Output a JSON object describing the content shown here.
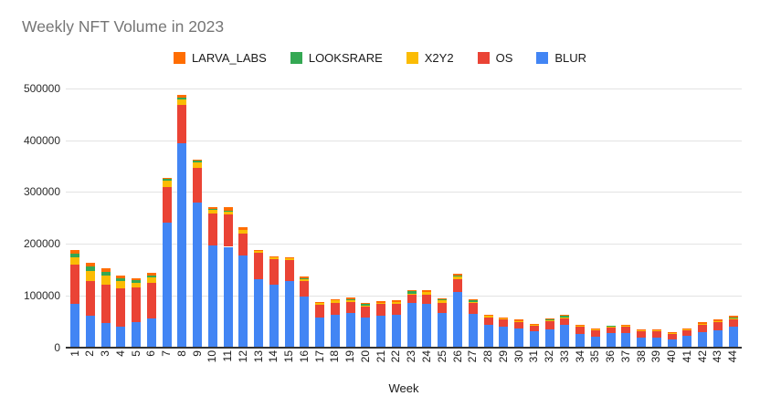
{
  "title": "Weekly NFT Volume in 2023",
  "chart_data": {
    "type": "bar",
    "stacked": true,
    "title": "Weekly NFT Volume in 2023",
    "xlabel": "Week",
    "ylabel": "",
    "ylim": [
      0,
      500000
    ],
    "grid": true,
    "legend_position": "top",
    "y_tick_labels": [
      "0",
      "100000",
      "200000",
      "300000",
      "400000",
      "500000"
    ],
    "y_tick_values": [
      0,
      100000,
      200000,
      300000,
      400000,
      500000
    ],
    "categories": [
      "1",
      "2",
      "3",
      "4",
      "5",
      "6",
      "7",
      "8",
      "9",
      "10",
      "11",
      "12",
      "13",
      "14",
      "15",
      "16",
      "17",
      "18",
      "19",
      "20",
      "21",
      "22",
      "23",
      "24",
      "25",
      "26",
      "27",
      "28",
      "29",
      "30",
      "31",
      "32",
      "33",
      "34",
      "35",
      "36",
      "37",
      "38",
      "39",
      "40",
      "41",
      "42",
      "43",
      "44"
    ],
    "stack_order_note": "series listed bottom-to-top of stack",
    "series": [
      {
        "name": "BLUR",
        "color": "#4285f4",
        "values": [
          83000,
          61000,
          47000,
          39000,
          49000,
          55000,
          240000,
          395000,
          280000,
          196000,
          194000,
          177000,
          132000,
          121000,
          127000,
          98000,
          58000,
          62000,
          67000,
          58000,
          61000,
          62000,
          86000,
          84000,
          67000,
          106000,
          64000,
          43000,
          40000,
          36000,
          30000,
          35000,
          44000,
          25000,
          21000,
          27000,
          28000,
          18000,
          19000,
          15000,
          22000,
          29000,
          33000,
          40000
        ]
      },
      {
        "name": "OS",
        "color": "#ea4335",
        "values": [
          76000,
          67000,
          73000,
          74000,
          67000,
          70000,
          69000,
          73000,
          66000,
          62000,
          62000,
          43000,
          50000,
          50000,
          41000,
          29000,
          24000,
          24000,
          21000,
          21000,
          22000,
          22000,
          17000,
          18000,
          19000,
          25000,
          21000,
          15000,
          13000,
          14000,
          12000,
          16000,
          13000,
          15000,
          13000,
          11000,
          13000,
          14000,
          13000,
          11000,
          12000,
          14000,
          15000,
          13000
        ]
      },
      {
        "name": "X2Y2",
        "color": "#fbbc04",
        "values": [
          14000,
          20000,
          19000,
          14000,
          9000,
          10000,
          13000,
          10000,
          11000,
          7000,
          7000,
          7000,
          4000,
          3000,
          4000,
          5000,
          3000,
          4000,
          2000,
          2000,
          3000,
          4000,
          1000,
          5000,
          4000,
          6000,
          2000,
          2000,
          2000,
          1000,
          1000,
          1000,
          1000,
          1000,
          1000,
          1000,
          1000,
          1000,
          1000,
          1000,
          1000,
          2000,
          2000,
          3000
        ]
      },
      {
        "name": "LOOKSRARE",
        "color": "#34a853",
        "values": [
          7000,
          8000,
          7000,
          6000,
          5000,
          4000,
          3000,
          5000,
          3000,
          2000,
          1000,
          0,
          0,
          0,
          0,
          1000,
          0,
          0,
          3000,
          3000,
          0,
          0,
          4000,
          0,
          2000,
          1000,
          3000,
          0,
          0,
          0,
          0,
          2000,
          3000,
          0,
          0,
          3000,
          0,
          0,
          0,
          0,
          0,
          0,
          0,
          1000
        ]
      },
      {
        "name": "LARVA_LABS",
        "color": "#ff6d01",
        "values": [
          8000,
          7000,
          6000,
          5000,
          4000,
          4000,
          3000,
          4000,
          3000,
          4000,
          7000,
          5000,
          2000,
          2000,
          2000,
          3000,
          2000,
          3000,
          3000,
          2000,
          3000,
          3000,
          2000,
          3000,
          2000,
          4000,
          2000,
          3000,
          2000,
          2000,
          2000,
          1000,
          1000,
          2000,
          2000,
          0,
          2000,
          2000,
          2000,
          2000,
          2000,
          3000,
          3000,
          3000
        ]
      }
    ],
    "legend_order": [
      "LARVA_LABS",
      "LOOKSRARE",
      "X2Y2",
      "OS",
      "BLUR"
    ]
  }
}
